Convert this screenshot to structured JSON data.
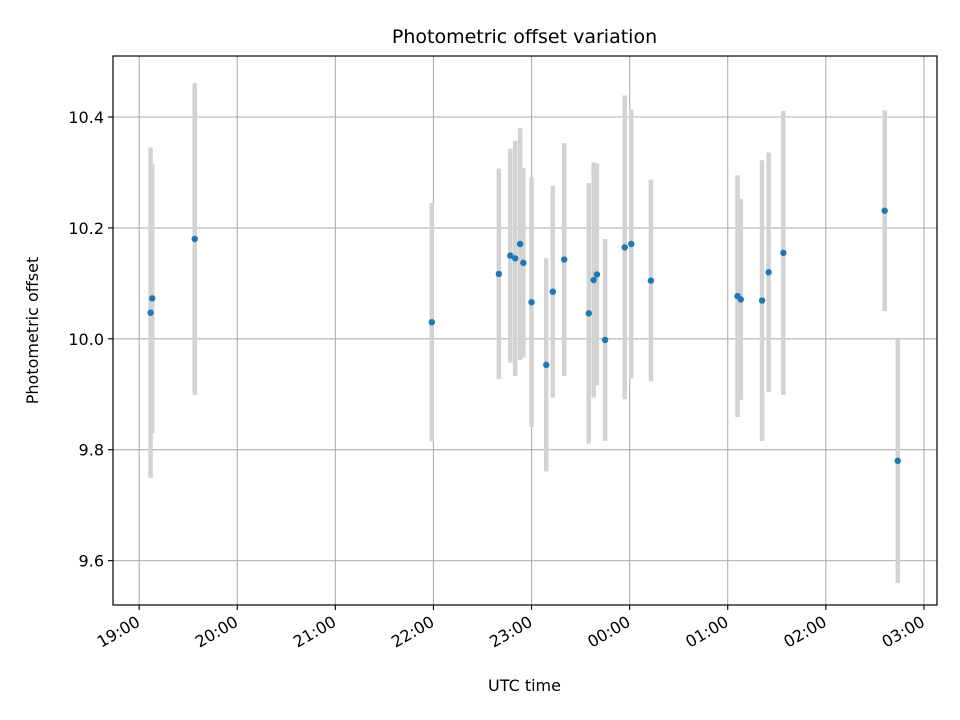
{
  "chart_data": {
    "type": "scatter",
    "title": "Photometric offset variation",
    "xlabel": "UTC time",
    "ylabel": "Photometric offset",
    "x_unit": "UTC clock time",
    "xlim": [
      "18:44",
      "03:08"
    ],
    "ylim": [
      9.52,
      10.51
    ],
    "x_ticks": [
      "19:00",
      "20:00",
      "21:00",
      "22:00",
      "23:00",
      "00:00",
      "01:00",
      "02:00",
      "03:00"
    ],
    "y_ticks": [
      9.6,
      9.8,
      10.0,
      10.2,
      10.4
    ],
    "grid": true,
    "legend": "none",
    "colors": {
      "point": "#1f77b4",
      "errorbar": "#d3d3d3",
      "grid": "#b0b0b0",
      "axes": "#000000"
    },
    "points": [
      {
        "x": "19:07",
        "y": 10.047,
        "err": 0.298
      },
      {
        "x": "19:08",
        "y": 10.073,
        "err": 0.243
      },
      {
        "x": "19:34",
        "y": 10.18,
        "err": 0.281
      },
      {
        "x": "21:59",
        "y": 10.03,
        "err": 0.215
      },
      {
        "x": "22:40",
        "y": 10.117,
        "err": 0.19
      },
      {
        "x": "22:47",
        "y": 10.15,
        "err": 0.193
      },
      {
        "x": "22:50",
        "y": 10.145,
        "err": 0.212
      },
      {
        "x": "22:53",
        "y": 10.171,
        "err": 0.209
      },
      {
        "x": "22:55",
        "y": 10.137,
        "err": 0.171
      },
      {
        "x": "23:00",
        "y": 10.066,
        "err": 0.225
      },
      {
        "x": "23:09",
        "y": 9.953,
        "err": 0.192
      },
      {
        "x": "23:13",
        "y": 10.085,
        "err": 0.191
      },
      {
        "x": "23:20",
        "y": 10.143,
        "err": 0.21
      },
      {
        "x": "23:35",
        "y": 10.046,
        "err": 0.235
      },
      {
        "x": "23:38",
        "y": 10.106,
        "err": 0.212
      },
      {
        "x": "23:40",
        "y": 10.116,
        "err": 0.2
      },
      {
        "x": "23:45",
        "y": 9.998,
        "err": 0.182
      },
      {
        "x": "23:57",
        "y": 10.165,
        "err": 0.274
      },
      {
        "x": "00:01",
        "y": 10.171,
        "err": 0.243
      },
      {
        "x": "00:13",
        "y": 10.105,
        "err": 0.182
      },
      {
        "x": "01:06",
        "y": 10.077,
        "err": 0.218
      },
      {
        "x": "01:08",
        "y": 10.071,
        "err": 0.181
      },
      {
        "x": "01:21",
        "y": 10.069,
        "err": 0.253
      },
      {
        "x": "01:25",
        "y": 10.12,
        "err": 0.216
      },
      {
        "x": "01:34",
        "y": 10.155,
        "err": 0.256
      },
      {
        "x": "02:36",
        "y": 10.231,
        "err": 0.181
      },
      {
        "x": "02:44",
        "y": 9.78,
        "err": 0.22
      }
    ]
  }
}
